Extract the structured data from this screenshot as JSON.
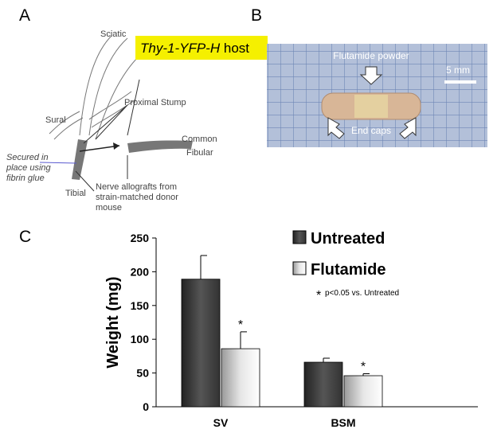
{
  "panel_labels": [
    "A",
    "B",
    "C"
  ],
  "diagram": {
    "sciatic": "Sciatic",
    "host_italic": "Thy-1-YFP-H",
    "host_plain": "host",
    "proximal_stump": "Proximal Stump",
    "sural": "Sural",
    "common_fibular": [
      "Common",
      "Fibular"
    ],
    "secured": [
      "Secured in",
      "place using",
      "fibrin glue"
    ],
    "tibial": "Tibial",
    "allografts": [
      "Nerve allografts from",
      "strain-matched donor",
      "mouse"
    ]
  },
  "photo": {
    "powder": "Flutamide powder",
    "scale": "5 mm",
    "caps": "End caps"
  },
  "chart_data": {
    "type": "bar",
    "y_label": "Weight (mg)",
    "categories": [
      "SV",
      "BSM"
    ],
    "series": [
      {
        "name": "Untreated",
        "color": "#555555",
        "values": [
          189,
          66
        ],
        "errors": [
          35,
          6
        ]
      },
      {
        "name": "Flutamide",
        "color": "#e6e6e6",
        "values": [
          86,
          46
        ],
        "errors": [
          25,
          3
        ]
      }
    ],
    "significance": [
      "*",
      "*"
    ],
    "note_symbol": "*",
    "note": "p<0.05 vs. Untreated",
    "ylim": [
      0,
      250
    ],
    "yticks": [
      0,
      50,
      100,
      150,
      200,
      250
    ],
    "grid": false
  }
}
